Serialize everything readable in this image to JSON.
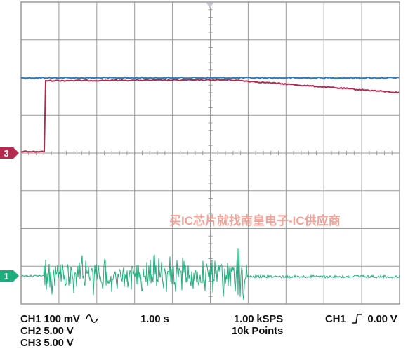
{
  "colors": {
    "grid": "#9a9a9a",
    "ch1": "#1eae7b",
    "ch2": "#2a7bc0",
    "ch3": "#b5294f",
    "watermark": "#f2988c",
    "text": "#111111"
  },
  "markers": {
    "ch3": "3",
    "ch1": "1"
  },
  "watermark": "买IC芯片就找南皇电子-IC供应商",
  "status": {
    "ch1_scale": "CH1  100 mV",
    "ch1_coupling_icon": "ac-coupling-icon",
    "ch2_scale": "CH2  5.00 V",
    "ch3_scale": "CH3 5.00 V",
    "timebase": "1.00 s",
    "sample_rate": "1.00 kSPS",
    "record_length": "10k Points",
    "trigger_source": "CH1",
    "trigger_icon": "rising-edge-icon",
    "trigger_level": "0.00 V"
  }
}
